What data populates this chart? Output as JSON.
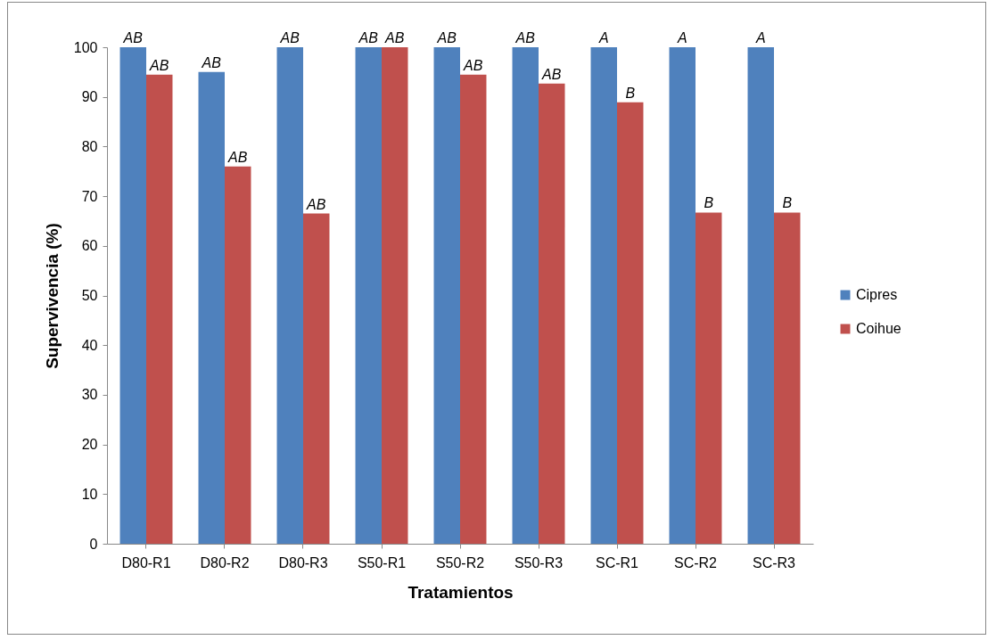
{
  "chart_data": {
    "type": "bar",
    "xlabel": "Tratamientos",
    "ylabel": "Supervivencia (%)",
    "categories": [
      "D80-R1",
      "D80-R2",
      "D80-R3",
      "S50-R1",
      "S50-R2",
      "S50-R3",
      "SC-R1",
      "SC-R2",
      "SC-R3"
    ],
    "series": [
      {
        "name": "Cipres",
        "color": "#4f81bd",
        "values": [
          100,
          95,
          100,
          100,
          100,
          100,
          100,
          100,
          100
        ],
        "value_labels": [
          "AB",
          "AB",
          "AB",
          "AB",
          "AB",
          "AB",
          "A",
          "A",
          "A"
        ]
      },
      {
        "name": "Coihue",
        "color": "#c0504d",
        "values": [
          94.5,
          76,
          66.5,
          100,
          94.5,
          92.7,
          88.9,
          66.7,
          66.7
        ],
        "value_labels": [
          "AB",
          "AB",
          "AB",
          "AB",
          "AB",
          "AB",
          "B",
          "B",
          "B"
        ]
      }
    ],
    "ylim": [
      0,
      100
    ],
    "yticks": [
      0,
      10,
      20,
      30,
      40,
      50,
      60,
      70,
      80,
      90,
      100
    ],
    "grid": false,
    "legend": "right"
  }
}
